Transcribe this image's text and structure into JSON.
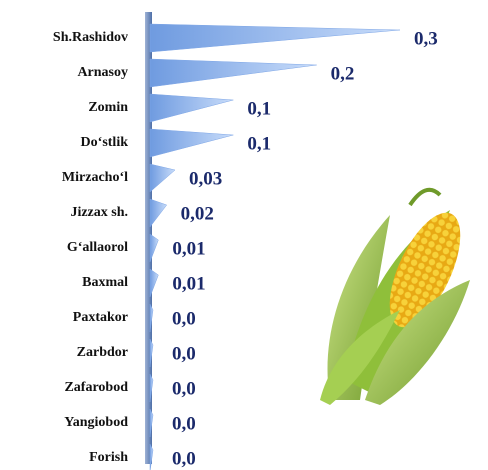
{
  "chart_data": {
    "type": "bar",
    "orientation": "horizontal",
    "categories": [
      "Sh.Rashidov",
      "Arnasoy",
      "Zomin",
      "Do‘stlik",
      "Mirzacho‘l",
      "Jizzax sh.",
      "G‘allaorol",
      "Baxmal",
      "Paxtakor",
      "Zarbdor",
      "Zafarobod",
      "Yangiobod",
      "Forish"
    ],
    "values": [
      0.3,
      0.2,
      0.1,
      0.1,
      0.03,
      0.02,
      0.01,
      0.01,
      0,
      0,
      0,
      0,
      0
    ],
    "value_labels": [
      "0,3",
      "0,2",
      "0,1",
      "0,1",
      "0,03",
      "0,02",
      "0,01",
      "0,01",
      "0,0",
      "0,0",
      "0,0",
      "0,0",
      "0,0"
    ],
    "color": "#8fb4ec"
  }
}
